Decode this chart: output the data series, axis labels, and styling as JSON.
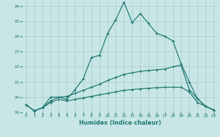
{
  "xlabel": "Humidex (Indice chaleur)",
  "xlim": [
    -0.5,
    23.5
  ],
  "ylim": [
    19,
    26.3
  ],
  "yticks": [
    19,
    20,
    21,
    22,
    23,
    24,
    25,
    26
  ],
  "xticks": [
    0,
    1,
    2,
    3,
    4,
    5,
    6,
    7,
    8,
    9,
    10,
    11,
    12,
    13,
    14,
    15,
    16,
    17,
    18,
    19,
    20,
    21,
    22,
    23
  ],
  "bg_color": "#c8e6e6",
  "grid_color": "#a8cecc",
  "line_color": "#1e7870",
  "line1_y": [
    19.5,
    19.1,
    19.3,
    20.0,
    20.0,
    19.85,
    20.5,
    21.2,
    22.6,
    22.75,
    24.2,
    25.1,
    26.25,
    24.9,
    25.5,
    24.85,
    24.2,
    24.0,
    23.7,
    22.2,
    21.0,
    19.9,
    19.4,
    19.15
  ],
  "line2_y": [
    19.5,
    19.1,
    19.3,
    19.75,
    20.0,
    20.05,
    20.25,
    20.45,
    20.65,
    20.85,
    21.1,
    21.3,
    21.5,
    21.6,
    21.7,
    21.75,
    21.8,
    21.85,
    22.0,
    22.1,
    20.5,
    19.9,
    19.4,
    19.15
  ],
  "line3_y": [
    19.5,
    19.1,
    19.3,
    19.65,
    19.85,
    19.75,
    19.85,
    19.95,
    20.05,
    20.15,
    20.25,
    20.35,
    20.45,
    20.5,
    20.55,
    20.58,
    20.62,
    20.65,
    20.65,
    20.65,
    20.35,
    19.65,
    19.4,
    19.15
  ]
}
